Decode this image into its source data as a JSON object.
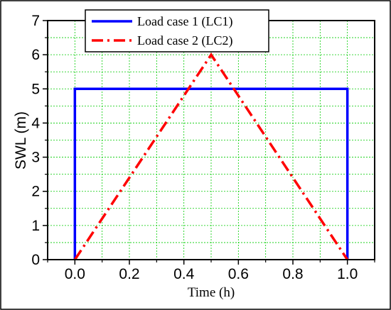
{
  "chart_data": {
    "type": "line",
    "xlabel": "Time (h)",
    "ylabel": "SWL (m)",
    "xlim": [
      -0.1,
      1.1
    ],
    "ylim": [
      0,
      7
    ],
    "x_ticks": [
      "0.0",
      "0.2",
      "0.4",
      "0.6",
      "0.8",
      "1.0"
    ],
    "y_ticks": [
      "0",
      "1",
      "2",
      "3",
      "4",
      "5",
      "6",
      "7"
    ],
    "grid": true,
    "legend_position": "top-center",
    "series": [
      {
        "name": "Load case 1 (LC1)",
        "color": "#0000ff",
        "line_style": "solid",
        "x": [
          0.0,
          0.0,
          1.0,
          1.0
        ],
        "y": [
          0,
          5,
          5,
          0
        ]
      },
      {
        "name": "Load case 2 (LC2)",
        "color": "#ff0000",
        "line_style": "dash-dot",
        "x": [
          0.0,
          0.5,
          1.0
        ],
        "y": [
          0,
          6,
          0
        ]
      }
    ]
  }
}
